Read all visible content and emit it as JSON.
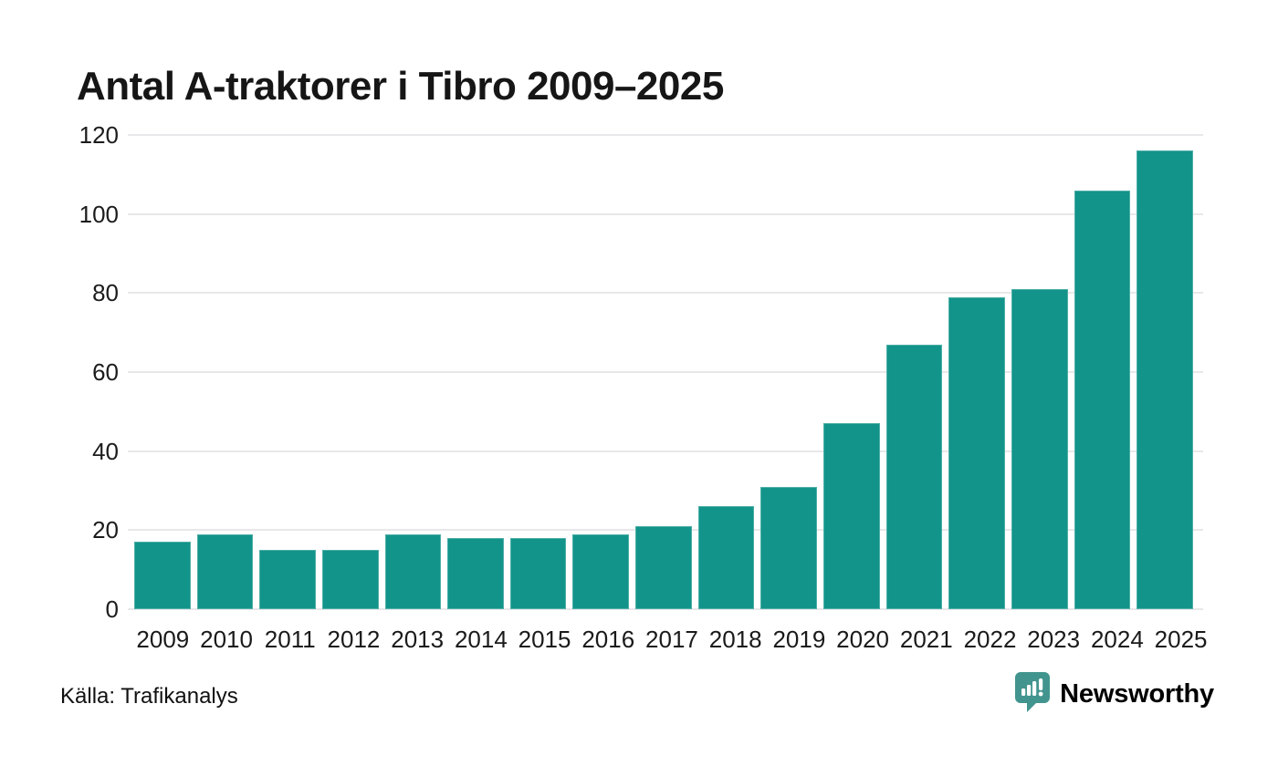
{
  "chart": {
    "title": "Antal A-traktorer i Tibro 2009–2025"
  },
  "chart_data": {
    "type": "bar",
    "title": "Antal A-traktorer i Tibro 2009–2025",
    "categories": [
      "2009",
      "2010",
      "2011",
      "2012",
      "2013",
      "2014",
      "2015",
      "2016",
      "2017",
      "2018",
      "2019",
      "2020",
      "2021",
      "2022",
      "2023",
      "2024",
      "2025"
    ],
    "values": [
      17,
      19,
      15,
      15,
      19,
      18,
      18,
      19,
      21,
      26,
      31,
      47,
      67,
      79,
      81,
      106,
      116
    ],
    "xlabel": "",
    "ylabel": "",
    "ylim": [
      0,
      120
    ],
    "yticks": [
      0,
      20,
      40,
      60,
      80,
      100,
      120
    ],
    "grid": true,
    "legend": false,
    "bar_color": "#12948a"
  },
  "footer": {
    "source": "Källa: Trafikanalys",
    "brand": "Newsworthy"
  },
  "colors": {
    "bar": "#12948a",
    "brand_teal": "#42958e",
    "gridline": "#e8e8ea",
    "text": "#1a1a1a",
    "title_text": "#161616"
  },
  "icons": {
    "brand_icon": "newsworthy-speech-bubble-bar-chart-icon"
  }
}
